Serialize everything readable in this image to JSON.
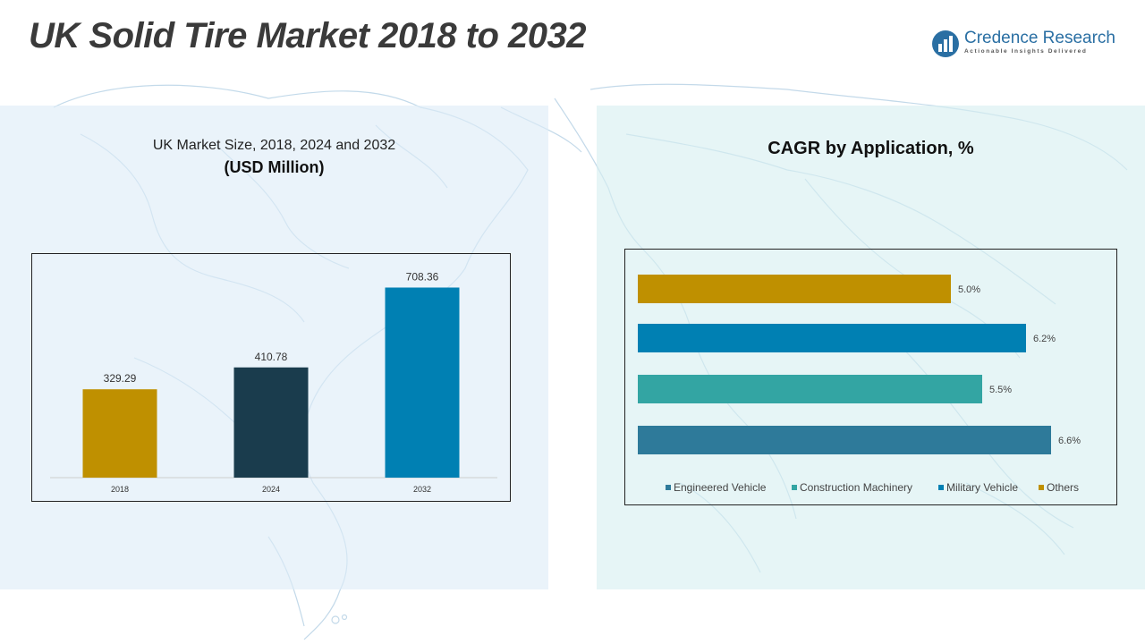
{
  "header": {
    "title": "UK Solid Tire Market 2018 to 2032",
    "logo_name": "Credence Research",
    "logo_tagline": "Actionable Insights Delivered"
  },
  "left_panel": {
    "subtitle": "UK Market Size, 2018, 2024 and 2032",
    "unit": "(USD Million)"
  },
  "right_panel": {
    "title": "CAGR by Application, %"
  },
  "colors": {
    "gold": "#BF9000",
    "navy": "#1A3C4D",
    "blue": "#0080B3",
    "teal": "#33A5A3",
    "steel": "#2E7A9A"
  },
  "chart_data": [
    {
      "type": "bar",
      "title": "UK Market Size, 2018, 2024 and 2032",
      "ylabel": "(USD Million)",
      "categories": [
        "2018",
        "2024",
        "2032"
      ],
      "values": [
        329.29,
        410.78,
        708.36
      ],
      "value_labels": [
        "329.29",
        "410.78",
        "708.36"
      ],
      "colors": [
        "#BF9000",
        "#1A3C4D",
        "#0080B3"
      ],
      "ylim": [
        0,
        800
      ],
      "grid": false
    },
    {
      "type": "bar",
      "orientation": "horizontal",
      "title": "CAGR by Application, %",
      "categories": [
        "Others",
        "Military Vehicle",
        "Construction Machinery",
        "Engineered Vehicle"
      ],
      "values": [
        5.0,
        6.2,
        5.5,
        6.6
      ],
      "value_labels": [
        "5.0%",
        "6.2%",
        "5.5%",
        "6.6%"
      ],
      "colors": [
        "#BF9000",
        "#0080B3",
        "#33A5A3",
        "#2E7A9A"
      ],
      "xlim": [
        0,
        7
      ],
      "legend": [
        "Engineered Vehicle",
        "Construction Machinery",
        "Military Vehicle",
        "Others"
      ],
      "legend_colors": [
        "#2E7A9A",
        "#33A5A3",
        "#0080B3",
        "#BF9000"
      ],
      "legend_position": "bottom",
      "grid": false
    }
  ]
}
